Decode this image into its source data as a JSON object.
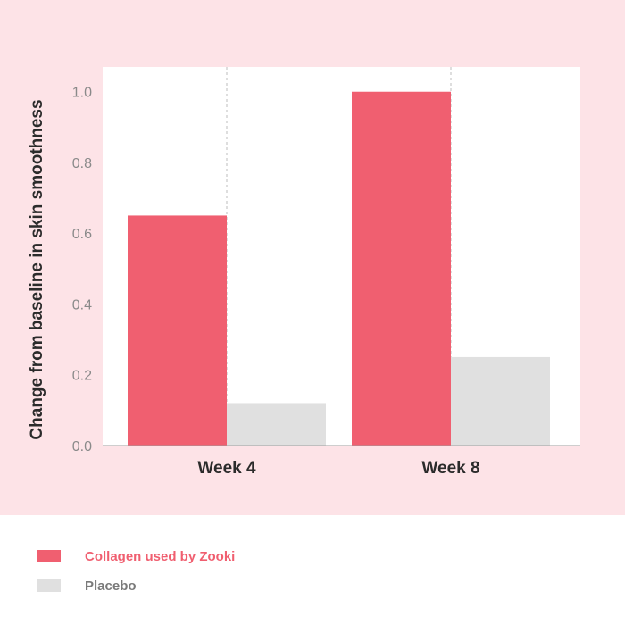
{
  "colors": {
    "panel_background": "#fde3e7",
    "plot_background": "#ffffff",
    "collagen": "#f05f70",
    "placebo": "#e0e0e0",
    "tick_text": "#8a8a8a",
    "axis_text": "#2b2b2b",
    "grid": "#bdbdbd"
  },
  "chart_data": {
    "type": "bar",
    "title": "",
    "xlabel": "",
    "ylabel": "Change from baseline in skin smoothness",
    "categories": [
      "Week 4",
      "Week 8"
    ],
    "series": [
      {
        "name": "Collagen used by Zooki",
        "values": [
          0.65,
          1.0
        ],
        "color": "#f05f70"
      },
      {
        "name": "Placebo",
        "values": [
          0.12,
          0.25
        ],
        "color": "#e0e0e0"
      }
    ],
    "ylim": [
      0,
      1.07
    ],
    "yticks": [
      "0.0",
      "0.2",
      "0.4",
      "0.6",
      "0.8",
      "1.0"
    ],
    "grid": "vertical dashed at category centers",
    "legend_position": "bottom-left"
  },
  "legend": {
    "items": [
      {
        "label": "Collagen used by Zooki",
        "color": "#f05f70",
        "text_color": "#f05f70"
      },
      {
        "label": "Placebo",
        "color": "#e0e0e0",
        "text_color": "#7a7a7a"
      }
    ]
  }
}
